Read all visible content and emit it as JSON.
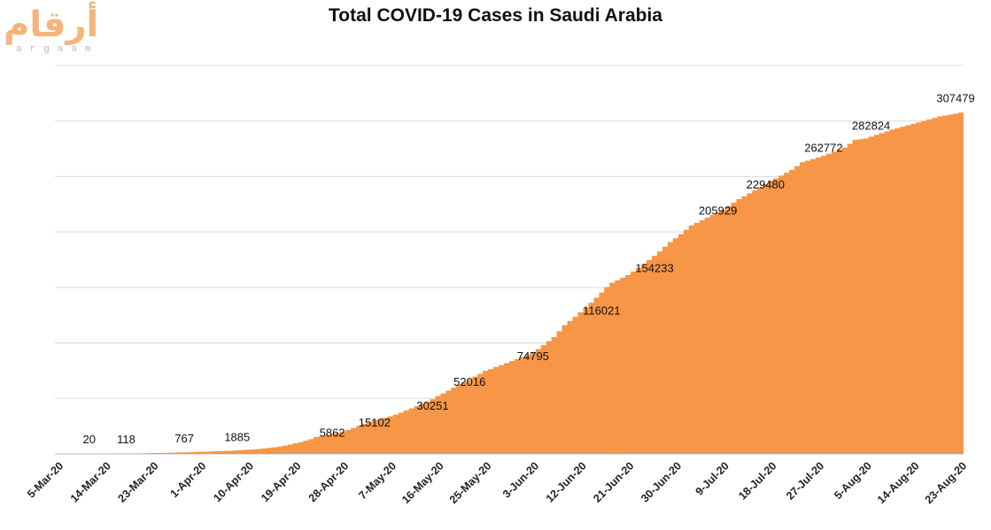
{
  "logo": {
    "arabic_text": "أرقام",
    "latin_text": "argaam"
  },
  "chart_data": {
    "type": "area",
    "title": "Total COVID-19 Cases in Saudi Arabia",
    "xlabel": "",
    "ylabel": "",
    "ylim": [
      0,
      350000
    ],
    "y_gridlines": [
      0,
      50000,
      100000,
      150000,
      200000,
      250000,
      300000,
      350000
    ],
    "y_tick_labels_shown": false,
    "color": "#f79646",
    "start_date": "5-Mar-20",
    "end_date": "23-Aug-20",
    "num_days": 172,
    "x_tick_labels": [
      "5-Mar-20",
      "14-Mar-20",
      "23-Mar-20",
      "1-Apr-20",
      "10-Apr-20",
      "19-Apr-20",
      "28-Apr-20",
      "7-May-20",
      "16-May-20",
      "25-May-20",
      "3-Jun-20",
      "12-Jun-20",
      "21-Jun-20",
      "30-Jun-20",
      "9-Jul-20",
      "18-Jul-20",
      "27-Jul-20",
      "5-Aug-20",
      "14-Aug-20",
      "23-Aug-20"
    ],
    "tick_interval_days": 9,
    "series": [
      {
        "name": "Total cases",
        "points": [
          {
            "day": 0,
            "date": "5-Mar-20",
            "value": 1
          },
          {
            "day": 4,
            "value": 20
          },
          {
            "day": 9,
            "date": "14-Mar-20",
            "value": 118
          },
          {
            "day": 18,
            "date": "23-Mar-20",
            "value": 767
          },
          {
            "day": 27,
            "date": "1-Apr-20",
            "value": 1885
          },
          {
            "day": 36,
            "date": "10-Apr-20",
            "value": 3651
          },
          {
            "day": 41,
            "value": 5862
          },
          {
            "day": 45,
            "date": "19-Apr-20",
            "value": 9362
          },
          {
            "day": 49,
            "value": 15102
          },
          {
            "day": 54,
            "date": "28-Apr-20",
            "value": 20077
          },
          {
            "day": 58,
            "value": 27011
          },
          {
            "day": 60,
            "value": 30251
          },
          {
            "day": 63,
            "date": "7-May-20",
            "value": 33731
          },
          {
            "day": 67,
            "value": 41014
          },
          {
            "day": 71,
            "value": 49176
          },
          {
            "day": 72,
            "date": "16-May-20",
            "value": 52016
          },
          {
            "day": 76,
            "value": 62545
          },
          {
            "day": 81,
            "date": "25-May-20",
            "value": 74795
          },
          {
            "day": 85,
            "value": 81766
          },
          {
            "day": 90,
            "date": "3-Jun-20",
            "value": 91182
          },
          {
            "day": 94,
            "value": 105283
          },
          {
            "day": 96,
            "value": 116021
          },
          {
            "day": 99,
            "date": "12-Jun-20",
            "value": 127541
          },
          {
            "day": 104,
            "value": 150292
          },
          {
            "day": 105,
            "value": 154233
          },
          {
            "day": 108,
            "date": "21-Jun-20",
            "value": 161005
          },
          {
            "day": 112,
            "value": 174577
          },
          {
            "day": 116,
            "value": 190823
          },
          {
            "day": 117,
            "date": "30-Jun-20",
            "value": 194225
          },
          {
            "day": 120,
            "value": 205929
          },
          {
            "day": 126,
            "date": "9-Jul-20",
            "value": 220144
          },
          {
            "day": 129,
            "value": 229480
          },
          {
            "day": 135,
            "date": "18-Jul-20",
            "value": 245851
          },
          {
            "day": 139,
            "value": 255825
          },
          {
            "day": 141,
            "value": 262772
          },
          {
            "day": 144,
            "date": "27-Jul-20",
            "value": 266941
          },
          {
            "day": 149,
            "value": 275905
          },
          {
            "day": 151,
            "value": 282824
          },
          {
            "day": 153,
            "date": "5-Aug-20",
            "value": 284226
          },
          {
            "day": 158,
            "value": 292254
          },
          {
            "day": 162,
            "date": "14-Aug-20",
            "value": 297315
          },
          {
            "day": 167,
            "value": 303973
          },
          {
            "day": 171,
            "date": "23-Aug-20",
            "value": 307479
          }
        ]
      }
    ],
    "data_labels": [
      {
        "day": 6,
        "value": 20,
        "text": "20"
      },
      {
        "day": 13,
        "value": 118,
        "text": "118"
      },
      {
        "day": 24,
        "value": 767,
        "text": "767"
      },
      {
        "day": 34,
        "value": 1885,
        "text": "1885"
      },
      {
        "day": 52,
        "value": 5862,
        "text": "5862"
      },
      {
        "day": 60,
        "value": 15102,
        "text": "15102"
      },
      {
        "day": 71,
        "value": 30251,
        "text": "30251"
      },
      {
        "day": 78,
        "value": 52016,
        "text": "52016"
      },
      {
        "day": 90,
        "value": 74795,
        "text": "74795"
      },
      {
        "day": 103,
        "value": 116021,
        "text": "116021"
      },
      {
        "day": 113,
        "value": 154233,
        "text": "154233"
      },
      {
        "day": 125,
        "value": 205929,
        "text": "205929"
      },
      {
        "day": 134,
        "value": 229480,
        "text": "229480"
      },
      {
        "day": 145,
        "value": 262772,
        "text": "262772"
      },
      {
        "day": 154,
        "value": 282824,
        "text": "282824"
      },
      {
        "day": 170,
        "value": 307479,
        "text": "307479"
      }
    ]
  }
}
